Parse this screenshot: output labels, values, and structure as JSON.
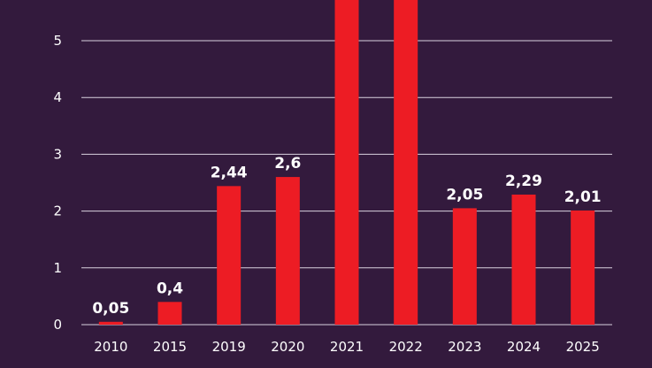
{
  "chart_data": {
    "type": "bar",
    "title": "",
    "xlabel": "",
    "ylabel": "",
    "categories": [
      "2010",
      "2015",
      "2019",
      "2020",
      "2021",
      "2022",
      "2023",
      "2024",
      "2025"
    ],
    "values": [
      0.05,
      0.4,
      2.44,
      2.6,
      6.0,
      6.0,
      2.05,
      2.29,
      2.01
    ],
    "data_labels": [
      "0,05",
      "0,4",
      "2,44",
      "2,6",
      "",
      "",
      "2,05",
      "2,29",
      "2,01"
    ],
    "y_ticks": [
      0,
      1,
      2,
      3,
      4,
      5
    ],
    "ylim": [
      0,
      5.7
    ],
    "grid": true,
    "legend": "none",
    "colors": {
      "background": "#331a3d",
      "bar": "#ed1c24",
      "text": "#ffffff",
      "grid": "#d9d2de"
    }
  }
}
